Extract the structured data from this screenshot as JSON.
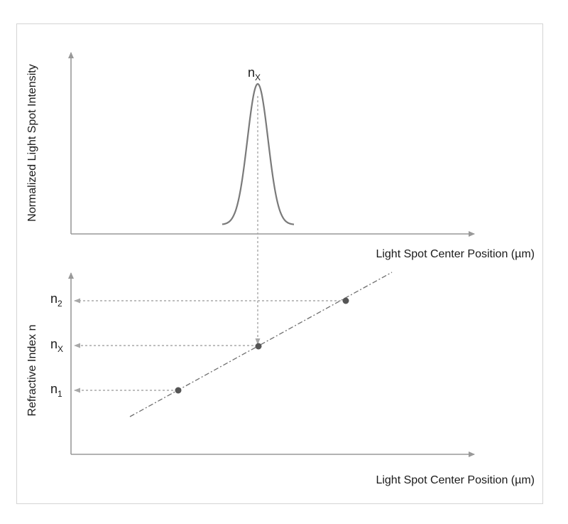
{
  "top_panel": {
    "y_axis_title": "Normalized Light Spot Intensity",
    "x_axis_title": "Light Spot Center Position (µm)",
    "peak_label": {
      "main": "n",
      "sub": "X"
    }
  },
  "bottom_panel": {
    "y_axis_title": "Refractive Index n",
    "x_axis_title": "Light Spot Center Position (µm)",
    "index_labels": [
      {
        "main": "n",
        "sub": "2"
      },
      {
        "main": "n",
        "sub": "X"
      },
      {
        "main": "n",
        "sub": "1"
      }
    ]
  },
  "colors": {
    "axis": "#999999",
    "curve": "#7a7a7a",
    "dashed": "#a8a8a8",
    "point": "#555555"
  }
}
